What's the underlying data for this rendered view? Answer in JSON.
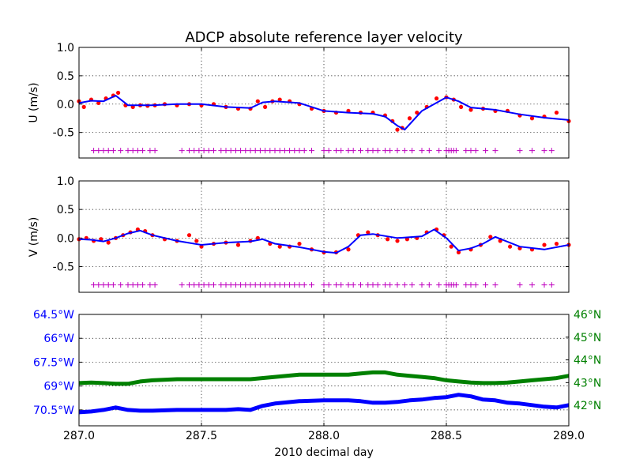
{
  "chart_data": [
    {
      "type": "scatter",
      "title": "ADCP absolute reference layer velocity",
      "ylabel": "U (m/s)",
      "xlim": [
        287.0,
        289.0
      ],
      "ylim": [
        -0.95,
        1.0
      ],
      "yticks": [
        "1.0",
        "0.5",
        "0.0",
        "-0.5"
      ],
      "ytick_values": [
        1.0,
        0.5,
        0.0,
        -0.5
      ],
      "grid": true,
      "series": [
        {
          "role": "raw",
          "marker": "dot",
          "color": "#ff0000",
          "x": [
            287.0,
            287.02,
            287.05,
            287.08,
            287.11,
            287.14,
            287.16,
            287.19,
            287.22,
            287.25,
            287.28,
            287.31,
            287.35,
            287.4,
            287.45,
            287.5,
            287.55,
            287.6,
            287.65,
            287.7,
            287.73,
            287.76,
            287.79,
            287.82,
            287.86,
            287.9,
            287.95,
            288.0,
            288.05,
            288.1,
            288.15,
            288.2,
            288.25,
            288.28,
            288.3,
            288.32,
            288.35,
            288.38,
            288.42,
            288.46,
            288.5,
            288.53,
            288.56,
            288.6,
            288.65,
            288.7,
            288.75,
            288.8,
            288.85,
            288.9,
            288.95,
            289.0
          ],
          "y": [
            0.05,
            -0.05,
            0.08,
            0.02,
            0.1,
            0.15,
            0.2,
            -0.02,
            -0.05,
            -0.02,
            -0.03,
            -0.02,
            0.0,
            -0.02,
            0.0,
            -0.02,
            0.0,
            -0.05,
            -0.08,
            -0.08,
            0.05,
            -0.05,
            0.05,
            0.08,
            0.05,
            0.0,
            -0.08,
            -0.12,
            -0.15,
            -0.12,
            -0.15,
            -0.15,
            -0.2,
            -0.3,
            -0.45,
            -0.42,
            -0.25,
            -0.15,
            -0.05,
            0.1,
            0.12,
            0.08,
            -0.05,
            -0.1,
            -0.08,
            -0.12,
            -0.12,
            -0.2,
            -0.25,
            -0.22,
            -0.15,
            -0.3
          ]
        },
        {
          "role": "smoothed",
          "marker": "line",
          "color": "#0000ff",
          "x": [
            287.0,
            287.05,
            287.1,
            287.15,
            287.2,
            287.3,
            287.4,
            287.5,
            287.6,
            287.7,
            287.75,
            287.8,
            287.9,
            288.0,
            288.1,
            288.2,
            288.25,
            288.3,
            288.33,
            288.4,
            288.5,
            288.55,
            288.6,
            288.7,
            288.8,
            288.9,
            289.0
          ],
          "y": [
            0.02,
            0.06,
            0.05,
            0.15,
            -0.02,
            -0.02,
            0.0,
            0.0,
            -0.05,
            -0.07,
            0.03,
            0.05,
            0.02,
            -0.12,
            -0.15,
            -0.17,
            -0.22,
            -0.38,
            -0.45,
            -0.12,
            0.12,
            0.05,
            -0.06,
            -0.1,
            -0.18,
            -0.24,
            -0.28
          ]
        },
        {
          "role": "flags",
          "marker": "plus",
          "color": "#bf00bf",
          "y_value": -0.82,
          "x": [
            287.06,
            287.08,
            287.1,
            287.12,
            287.14,
            287.17,
            287.2,
            287.22,
            287.24,
            287.26,
            287.29,
            287.31,
            287.42,
            287.45,
            287.47,
            287.49,
            287.51,
            287.53,
            287.55,
            287.58,
            287.6,
            287.62,
            287.64,
            287.66,
            287.68,
            287.7,
            287.72,
            287.74,
            287.76,
            287.78,
            287.8,
            287.82,
            287.84,
            287.86,
            287.88,
            287.9,
            287.92,
            287.95,
            288.0,
            288.02,
            288.05,
            288.07,
            288.1,
            288.12,
            288.15,
            288.18,
            288.2,
            288.22,
            288.25,
            288.27,
            288.3,
            288.33,
            288.36,
            288.4,
            288.43,
            288.47,
            288.5,
            288.51,
            288.52,
            288.53,
            288.54,
            288.58,
            288.6,
            288.62,
            288.66,
            288.7,
            288.8,
            288.85,
            288.9,
            288.93
          ]
        }
      ]
    },
    {
      "type": "scatter",
      "ylabel": "V (m/s)",
      "xlim": [
        287.0,
        289.0
      ],
      "ylim": [
        -0.95,
        1.0
      ],
      "yticks": [
        "1.0",
        "0.5",
        "0.0",
        "-0.5"
      ],
      "ytick_values": [
        1.0,
        0.5,
        0.0,
        -0.5
      ],
      "grid": true,
      "series": [
        {
          "role": "raw",
          "marker": "dot",
          "color": "#ff0000",
          "x": [
            287.0,
            287.03,
            287.06,
            287.09,
            287.12,
            287.15,
            287.18,
            287.21,
            287.24,
            287.27,
            287.3,
            287.35,
            287.4,
            287.45,
            287.48,
            287.5,
            287.55,
            287.6,
            287.65,
            287.7,
            287.73,
            287.78,
            287.82,
            287.86,
            287.9,
            287.95,
            288.0,
            288.05,
            288.1,
            288.14,
            288.18,
            288.22,
            288.26,
            288.3,
            288.34,
            288.38,
            288.42,
            288.46,
            288.49,
            288.52,
            288.55,
            288.6,
            288.64,
            288.68,
            288.72,
            288.76,
            288.8,
            288.85,
            288.9,
            288.95,
            289.0
          ],
          "y": [
            -0.02,
            0.0,
            -0.05,
            -0.02,
            -0.08,
            0.0,
            0.05,
            0.1,
            0.15,
            0.12,
            0.05,
            -0.02,
            -0.05,
            0.05,
            -0.05,
            -0.15,
            -0.1,
            -0.08,
            -0.12,
            -0.05,
            0.0,
            -0.1,
            -0.15,
            -0.15,
            -0.1,
            -0.2,
            -0.25,
            -0.25,
            -0.2,
            0.05,
            0.1,
            0.05,
            -0.02,
            -0.05,
            -0.02,
            0.0,
            0.1,
            0.15,
            0.05,
            -0.15,
            -0.25,
            -0.2,
            -0.12,
            0.02,
            -0.05,
            -0.15,
            -0.18,
            -0.2,
            -0.12,
            -0.1,
            -0.12
          ]
        },
        {
          "role": "smoothed",
          "marker": "line",
          "color": "#0000ff",
          "x": [
            287.0,
            287.05,
            287.1,
            287.15,
            287.2,
            287.25,
            287.3,
            287.4,
            287.5,
            287.6,
            287.7,
            287.75,
            287.8,
            287.9,
            288.0,
            288.05,
            288.1,
            288.15,
            288.2,
            288.3,
            288.4,
            288.45,
            288.5,
            288.55,
            288.6,
            288.65,
            288.7,
            288.8,
            288.9,
            289.0
          ],
          "y": [
            -0.02,
            -0.03,
            -0.06,
            0.0,
            0.08,
            0.13,
            0.05,
            -0.05,
            -0.12,
            -0.08,
            -0.06,
            -0.02,
            -0.1,
            -0.16,
            -0.24,
            -0.26,
            -0.15,
            0.05,
            0.07,
            0.0,
            0.03,
            0.15,
            0.0,
            -0.22,
            -0.18,
            -0.1,
            0.02,
            -0.15,
            -0.2,
            -0.12
          ]
        },
        {
          "role": "flags",
          "marker": "plus",
          "color": "#bf00bf",
          "y_value": -0.82,
          "x": [
            287.06,
            287.08,
            287.1,
            287.12,
            287.14,
            287.17,
            287.2,
            287.22,
            287.24,
            287.26,
            287.29,
            287.31,
            287.42,
            287.45,
            287.47,
            287.49,
            287.51,
            287.53,
            287.55,
            287.58,
            287.6,
            287.62,
            287.64,
            287.66,
            287.68,
            287.7,
            287.72,
            287.74,
            287.76,
            287.78,
            287.8,
            287.82,
            287.84,
            287.86,
            287.88,
            287.9,
            287.92,
            287.95,
            288.0,
            288.02,
            288.05,
            288.07,
            288.1,
            288.12,
            288.15,
            288.18,
            288.2,
            288.22,
            288.25,
            288.27,
            288.3,
            288.33,
            288.36,
            288.4,
            288.43,
            288.47,
            288.5,
            288.51,
            288.52,
            288.53,
            288.54,
            288.58,
            288.6,
            288.62,
            288.66,
            288.7,
            288.8,
            288.85,
            288.9,
            288.93
          ]
        }
      ]
    },
    {
      "type": "line",
      "xlabel": "2010 decimal day",
      "xlim": [
        287.0,
        289.0
      ],
      "xticks": [
        "287.0",
        "287.5",
        "288.0",
        "288.5",
        "289.0"
      ],
      "xtick_values": [
        287.0,
        287.5,
        288.0,
        288.5,
        289.0
      ],
      "grid": true,
      "left_axis": {
        "color": "#0000ff",
        "ylim": [
          -71.5,
          -64.5
        ],
        "yticks": [
          "64.5°W",
          "66°W",
          "67.5°W",
          "69°W",
          "70.5°W"
        ],
        "ytick_values": [
          -64.5,
          -66.0,
          -67.5,
          -69.0,
          -70.5
        ]
      },
      "right_axis": {
        "color": "#008000",
        "ylim": [
          41.1,
          46.0
        ],
        "yticks": [
          "46°N",
          "45°N",
          "44°N",
          "43°N",
          "42°N"
        ],
        "ytick_values": [
          46.0,
          45.0,
          44.0,
          43.0,
          42.0
        ]
      },
      "series": [
        {
          "axis": "left",
          "color": "#0000ff",
          "x": [
            287.0,
            287.05,
            287.1,
            287.15,
            287.2,
            287.25,
            287.3,
            287.4,
            287.5,
            287.6,
            287.65,
            287.7,
            287.72,
            287.75,
            287.8,
            287.9,
            288.0,
            288.1,
            288.15,
            288.2,
            288.25,
            288.3,
            288.35,
            288.4,
            288.45,
            288.5,
            288.55,
            288.6,
            288.65,
            288.7,
            288.75,
            288.8,
            288.85,
            288.9,
            288.95,
            289.0
          ],
          "y": [
            -70.65,
            -70.6,
            -70.5,
            -70.35,
            -70.5,
            -70.55,
            -70.55,
            -70.5,
            -70.5,
            -70.5,
            -70.45,
            -70.5,
            -70.4,
            -70.25,
            -70.1,
            -69.95,
            -69.9,
            -69.9,
            -69.95,
            -70.05,
            -70.05,
            -70.0,
            -69.9,
            -69.85,
            -69.75,
            -69.7,
            -69.55,
            -69.65,
            -69.85,
            -69.9,
            -70.05,
            -70.1,
            -70.2,
            -70.3,
            -70.35,
            -70.2
          ]
        },
        {
          "axis": "right",
          "color": "#008000",
          "x": [
            287.0,
            287.05,
            287.1,
            287.15,
            287.2,
            287.25,
            287.3,
            287.4,
            287.5,
            287.6,
            287.7,
            287.8,
            287.9,
            288.0,
            288.1,
            288.15,
            288.2,
            288.25,
            288.3,
            288.35,
            288.4,
            288.45,
            288.5,
            288.55,
            288.6,
            288.65,
            288.7,
            288.75,
            288.8,
            288.85,
            288.9,
            288.95,
            289.0
          ],
          "y": [
            42.98,
            43.0,
            42.98,
            42.95,
            42.95,
            43.05,
            43.1,
            43.15,
            43.15,
            43.15,
            43.15,
            43.25,
            43.35,
            43.35,
            43.35,
            43.4,
            43.45,
            43.45,
            43.35,
            43.3,
            43.25,
            43.2,
            43.1,
            43.05,
            43.0,
            42.98,
            42.98,
            43.0,
            43.05,
            43.1,
            43.15,
            43.2,
            43.3
          ]
        }
      ]
    }
  ]
}
